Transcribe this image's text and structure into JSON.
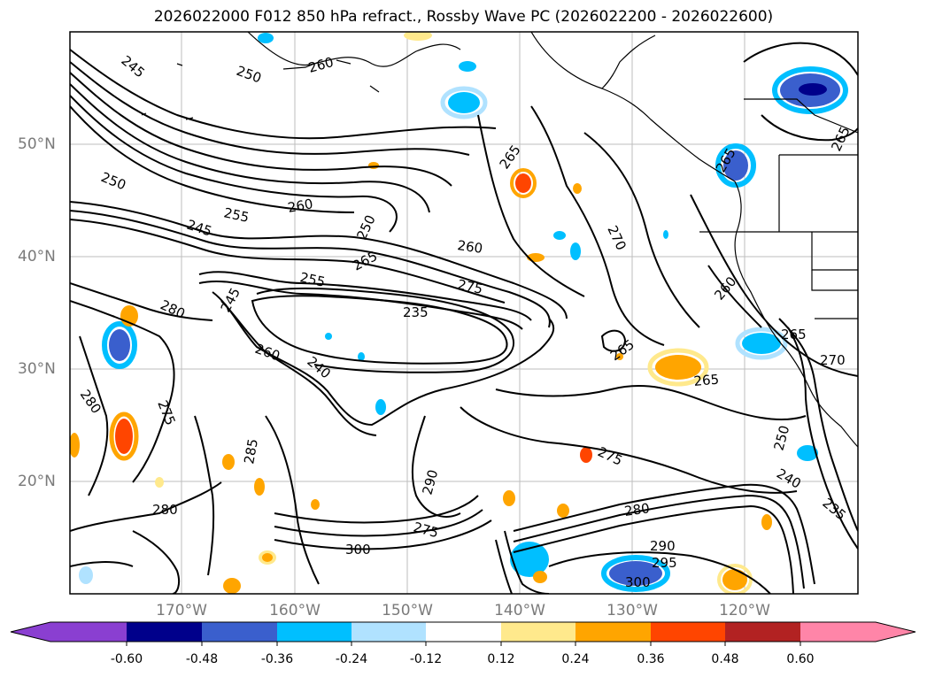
{
  "title": "2026022000 F012 850 hPa refract., Rossby Wave PC (2026022200 - 2026022600)",
  "lat_labels": [
    "50°N",
    "40°N",
    "30°N",
    "20°N"
  ],
  "lon_labels": [
    "170°W",
    "160°W",
    "150°W",
    "140°W",
    "130°W",
    "120°W"
  ],
  "contour_labels": [
    "245",
    "250",
    "260",
    "265",
    "265",
    "265",
    "250",
    "255",
    "260",
    "245",
    "250",
    "260",
    "265",
    "270",
    "255",
    "275",
    "235",
    "280",
    "245",
    "260",
    "240",
    "265",
    "265",
    "280",
    "275",
    "285",
    "290",
    "275",
    "280",
    "300",
    "275",
    "290",
    "295",
    "300",
    "280",
    "265",
    "260",
    "250",
    "240",
    "235",
    "270"
  ],
  "colorbar": {
    "labels": [
      "-0.60",
      "-0.48",
      "-0.36",
      "-0.24",
      "-0.12",
      "0.12",
      "0.24",
      "0.36",
      "0.48",
      "0.60"
    ],
    "colors": [
      "#8a3fd1",
      "#00008b",
      "#3a5fcd",
      "#00bfff",
      "#b0e2ff",
      "#ffffff",
      "#ffe98c",
      "#ffa500",
      "#ff4500",
      "#b22222",
      "#ff85a8"
    ]
  }
}
